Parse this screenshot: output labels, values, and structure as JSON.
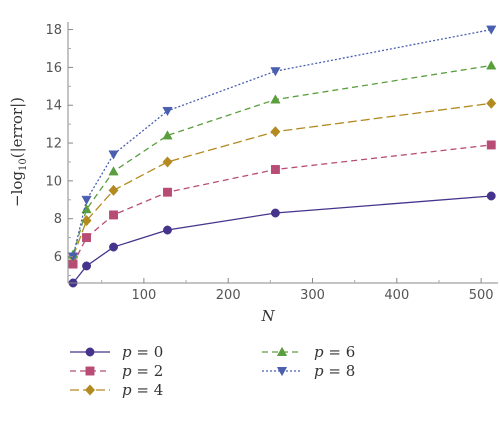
{
  "chart_data": {
    "type": "line",
    "xlabel": "N",
    "ylabel_parts": [
      "−log",
      "10",
      "(|error|)"
    ],
    "xlim": [
      10,
      520
    ],
    "ylim": [
      4.6,
      18.4
    ],
    "x_ticks": [
      100,
      200,
      300,
      400,
      500
    ],
    "y_ticks": [
      6,
      8,
      10,
      12,
      14,
      16,
      18
    ],
    "x_tick_labels": [
      "100",
      "200",
      "300",
      "400",
      "500"
    ],
    "y_tick_labels": [
      "6",
      "8",
      "10",
      "12",
      "14",
      "16",
      "18"
    ],
    "grid": false,
    "legend_position": "bottom",
    "series": [
      {
        "name": "p = 0",
        "var": "p",
        "val": "0",
        "color": "#46338c",
        "marker": "circle",
        "dash": "solid",
        "x": [
          16,
          32,
          64,
          128,
          256,
          512
        ],
        "y": [
          4.6,
          5.5,
          6.5,
          7.4,
          8.3,
          9.2
        ]
      },
      {
        "name": "p = 2",
        "var": "p",
        "val": "2",
        "color": "#b84c74",
        "marker": "square",
        "dash": "dashed",
        "x": [
          16,
          32,
          64,
          128,
          256,
          512
        ],
        "y": [
          5.6,
          7.0,
          8.2,
          9.4,
          10.6,
          11.9
        ]
      },
      {
        "name": "p = 4",
        "var": "p",
        "val": "4",
        "color": "#b38a1f",
        "marker": "diamond",
        "dash": "longdash",
        "x": [
          16,
          32,
          64,
          128,
          256,
          512
        ],
        "y": [
          6.0,
          7.9,
          9.5,
          11.0,
          12.6,
          14.1
        ]
      },
      {
        "name": "p = 6",
        "var": "p",
        "val": "6",
        "color": "#5a9e3e",
        "marker": "triangle-up",
        "dash": "dashed",
        "x": [
          16,
          32,
          64,
          128,
          256,
          512
        ],
        "y": [
          6.1,
          8.5,
          10.5,
          12.4,
          14.3,
          16.1
        ]
      },
      {
        "name": "p = 8",
        "var": "p",
        "val": "8",
        "color": "#4a5fb0",
        "marker": "triangle-down",
        "dash": "dotted",
        "x": [
          16,
          32,
          64,
          128,
          256,
          512
        ],
        "y": [
          6.0,
          9.0,
          11.4,
          13.7,
          15.8,
          18.0
        ]
      }
    ]
  }
}
